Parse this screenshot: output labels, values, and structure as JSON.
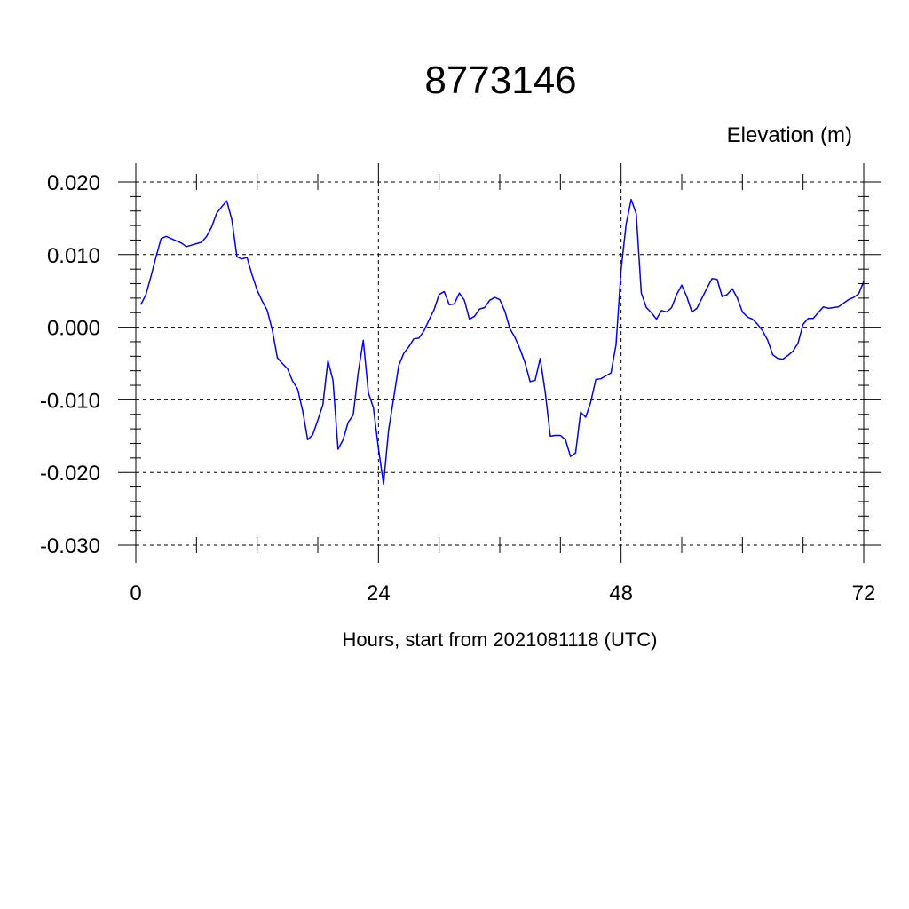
{
  "chart_data": {
    "type": "line",
    "title": "8773146",
    "ylabel": "Elevation (m)",
    "xlabel": "Hours, start from 2021081118 (UTC)",
    "xlim": [
      0,
      72
    ],
    "ylim": [
      -0.03,
      0.02
    ],
    "x_ticks": [
      0,
      24,
      48,
      72
    ],
    "x_tick_labels": [
      "0",
      "24",
      "48",
      "72"
    ],
    "y_ticks": [
      0.02,
      0.01,
      0.0,
      -0.01,
      -0.02,
      -0.03
    ],
    "y_tick_labels": [
      "0.020",
      "0.010",
      "0.000",
      "-0.010",
      "-0.020",
      "-0.030"
    ],
    "grid": true,
    "series": [
      {
        "color": "#0000ff",
        "x": [
          0.5,
          1.0,
          1.5,
          2.0,
          2.5,
          3.0,
          3.5,
          4.0,
          4.5,
          5.0,
          5.5,
          6.0,
          6.5,
          7.0,
          7.5,
          8.0,
          8.5,
          9.0,
          9.5,
          10.0,
          10.5,
          11.0,
          11.5,
          12.0,
          12.5,
          13.0,
          13.5,
          14.0,
          14.5,
          15.0,
          15.5,
          16.0,
          16.5,
          17.0,
          17.5,
          18.0,
          18.5,
          19.0,
          19.5,
          20.0,
          20.5,
          21.0,
          21.5,
          22.0,
          22.5,
          23.0,
          23.5,
          24.0,
          24.5,
          25.0,
          25.5,
          26.0,
          26.5,
          27.0,
          27.5,
          28.0,
          28.5,
          29.0,
          29.5,
          30.0,
          30.5,
          31.0,
          31.5,
          32.0,
          32.5,
          33.0,
          33.5,
          34.0,
          34.5,
          35.0,
          35.5,
          36.0,
          36.5,
          37.0,
          37.5,
          38.0,
          38.5,
          39.0,
          39.5,
          40.0,
          40.5,
          41.0,
          41.5,
          42.0,
          42.5,
          43.0,
          43.5,
          44.0,
          44.5,
          45.0,
          45.5,
          46.0,
          46.5,
          47.0,
          47.5,
          48.0,
          48.5,
          49.0,
          49.5,
          50.0,
          50.5,
          51.0,
          51.5,
          52.0,
          52.5,
          53.0,
          53.5,
          54.0,
          54.5,
          55.0,
          55.5,
          56.0,
          56.5,
          57.0,
          57.5,
          58.0,
          58.5,
          59.0,
          59.5,
          60.0,
          60.5,
          61.0,
          61.5,
          62.0,
          62.5,
          63.0,
          63.5,
          64.0,
          64.5,
          65.0,
          65.5,
          66.0,
          66.5,
          67.0,
          67.5,
          68.0,
          68.5,
          69.0,
          69.5,
          70.0,
          70.5,
          71.0,
          71.5,
          72.0
        ],
        "y": [
          0.0031,
          0.0045,
          0.007,
          0.0097,
          0.0122,
          0.0125,
          0.0122,
          0.0119,
          0.0116,
          0.0111,
          0.0113,
          0.0115,
          0.0117,
          0.0125,
          0.0138,
          0.0157,
          0.0166,
          0.0174,
          0.0148,
          0.0097,
          0.0094,
          0.0096,
          0.0072,
          0.0051,
          0.0036,
          0.0023,
          -0.0004,
          -0.0042,
          -0.005,
          -0.0057,
          -0.0074,
          -0.0085,
          -0.0115,
          -0.0155,
          -0.0148,
          -0.0128,
          -0.0107,
          -0.0046,
          -0.0073,
          -0.0168,
          -0.0155,
          -0.0131,
          -0.0121,
          -0.0062,
          -0.0018,
          -0.009,
          -0.0111,
          -0.0167,
          -0.0216,
          -0.0142,
          -0.0098,
          -0.0053,
          -0.0036,
          -0.0027,
          -0.0016,
          -0.0015,
          -0.0005,
          0.001,
          0.0024,
          0.0045,
          0.0049,
          0.0031,
          0.0032,
          0.0047,
          0.0037,
          0.0011,
          0.0015,
          0.0025,
          0.0027,
          0.0037,
          0.0041,
          0.0038,
          0.0022,
          -0.0002,
          -0.0014,
          -0.003,
          -0.0049,
          -0.0075,
          -0.0073,
          -0.0043,
          -0.009,
          -0.015,
          -0.0149,
          -0.0149,
          -0.0155,
          -0.0178,
          -0.0173,
          -0.0117,
          -0.0124,
          -0.0103,
          -0.0072,
          -0.0071,
          -0.0067,
          -0.0063,
          -0.0024,
          0.0079,
          0.0142,
          0.0176,
          0.0156,
          0.0047,
          0.0027,
          0.002,
          0.0011,
          0.0023,
          0.0021,
          0.0027,
          0.0045,
          0.0058,
          0.0042,
          0.0021,
          0.0026,
          0.004,
          0.0054,
          0.0067,
          0.0066,
          0.0042,
          0.0045,
          0.0053,
          0.004,
          0.0021,
          0.0014,
          0.0011,
          0.0004,
          -0.0005,
          -0.0018,
          -0.0038,
          -0.0043,
          -0.0044,
          -0.0039,
          -0.0033,
          -0.0022,
          0.0004,
          0.0012,
          0.0012,
          0.002,
          0.0028,
          0.0026,
          0.0027,
          0.0028,
          0.0033,
          0.0038,
          0.0041,
          0.0046,
          0.0063
        ]
      }
    ]
  }
}
